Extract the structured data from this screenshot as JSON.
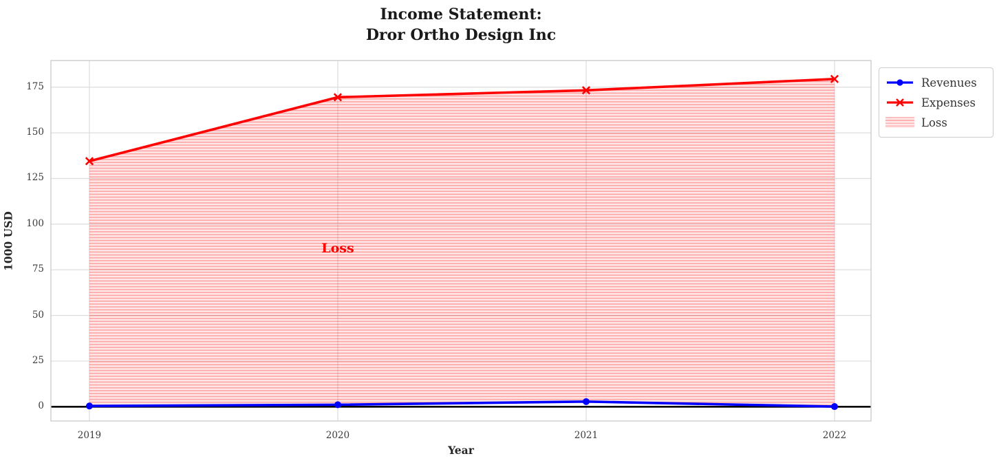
{
  "title": {
    "line1": "Income Statement:",
    "line2": "Dror Ortho Design Inc"
  },
  "chart_data": {
    "type": "line",
    "x": [
      2019,
      2020,
      2021,
      2022
    ],
    "series": [
      {
        "name": "Revenues",
        "color": "#0000ff",
        "marker": "circle",
        "values": [
          0.4,
          1.1,
          2.8,
          0.1
        ]
      },
      {
        "name": "Expenses",
        "color": "#ff0000",
        "marker": "x",
        "values": [
          134.5,
          169.5,
          173.3,
          179.5
        ]
      }
    ],
    "fill_between": {
      "label": "Loss",
      "between": [
        "Revenues",
        "Expenses"
      ],
      "color": "#ff0000",
      "hatch": "horizontal-lines"
    },
    "annotation": {
      "text": "Loss",
      "x": 2020,
      "y": 86,
      "color": "#ff0000"
    },
    "xlabel": "Year",
    "ylabel": "1000 USD",
    "xticks": [
      2019,
      2020,
      2021,
      2022
    ],
    "yticks": [
      0,
      25,
      50,
      75,
      100,
      125,
      150,
      175
    ],
    "xlim": [
      2018.845,
      2022.147
    ],
    "ylim": [
      -7.8,
      189.6
    ],
    "grid": true,
    "zero_line": true,
    "legend_position": "outside-upper-right",
    "legend_entries": [
      "Revenues",
      "Expenses",
      "Loss"
    ]
  },
  "colors": {
    "revenues": "#0000ff",
    "expenses": "#ff0000",
    "loss_fill": "rgba(255,0,0,0.09)",
    "loss_hatch": "rgba(255,0,0,0.30)",
    "grid": "#dcdcdc",
    "spine": "#cccccc",
    "zero_line": "#000000",
    "tick_text": "#3b3b3b",
    "title_text": "#1a1a1a",
    "annotation_text": "#ff0000"
  }
}
